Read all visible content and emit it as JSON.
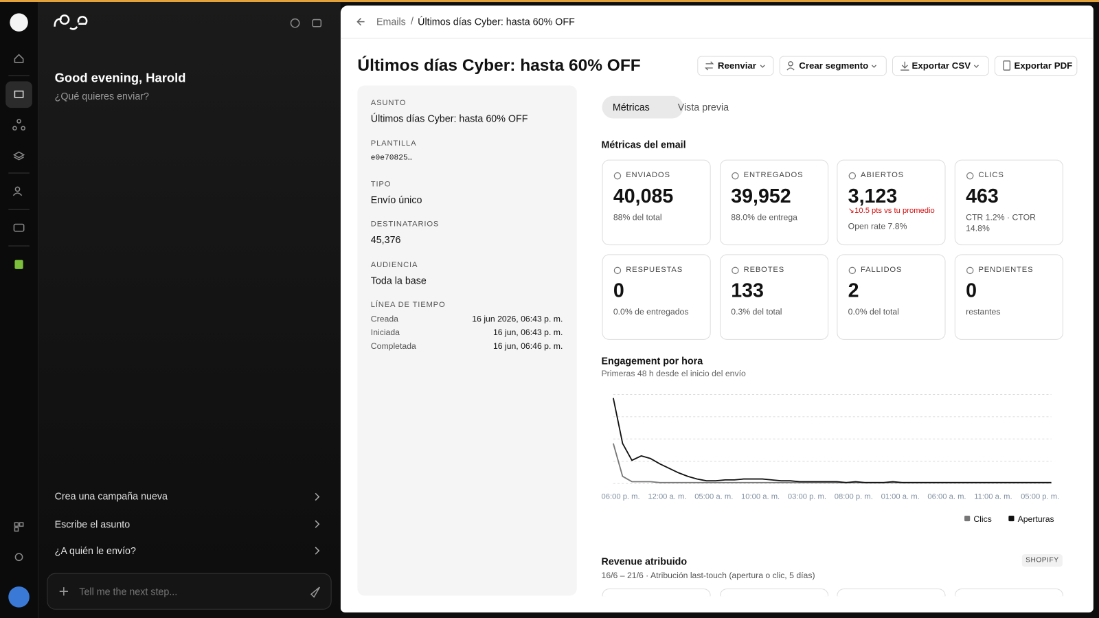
{
  "sidebar": {
    "greeting": "Good evening, Harold",
    "prompt": "¿Qué quieres enviar?",
    "suggestions": [
      "Crea una campaña nueva",
      "Escribe el asunto",
      "¿A quién le envío?"
    ],
    "input_placeholder": "Tell me the next step..."
  },
  "breadcrumb": [
    "Emails",
    "Últimos días Cyber: hasta 60% OFF"
  ],
  "title": "Últimos días Cyber: hasta 60% OFF",
  "actions": [
    "Reenviar",
    "Crear segmento",
    "Exportar CSV",
    "Exportar PDF"
  ],
  "details": [
    {
      "label": "ASUNTO",
      "value": "Últimos días Cyber: hasta 60% OFF"
    },
    {
      "label": "PLANTILLA",
      "value": "e0e70825…"
    },
    {
      "label": "TIPO",
      "value": "Envío único"
    },
    {
      "label": "DESTINATARIOS",
      "value": "45,376"
    },
    {
      "label": "AUDIENCIA",
      "value": "Toda la base"
    }
  ],
  "timeline": {
    "label": "LÍNEA DE TIEMPO",
    "rows": [
      {
        "label": "Creada",
        "value": "16 jun 2026, 06:43 p. m."
      },
      {
        "label": "Iniciada",
        "value": "16 jun, 06:43 p. m."
      },
      {
        "label": "Completada",
        "value": "16 jun, 06:46 p. m."
      }
    ]
  },
  "tabs": [
    "Métricas",
    "Vista previa"
  ],
  "metrics": {
    "title": "Métricas del email",
    "cards": [
      {
        "label": "ENVIADOS",
        "value": "40,085",
        "note": "88% del total"
      },
      {
        "label": "ENTREGADOS",
        "value": "39,952",
        "note": "88.0% de entrega"
      },
      {
        "label": "ABIERTOS",
        "value": "3,123",
        "alert": "↘10.5 pts vs tu promedio",
        "note": "Open rate 7.8%"
      },
      {
        "label": "CLICS",
        "value": "463",
        "note": "CTR 1.2% · CTOR 14.8%"
      },
      {
        "label": "RESPUESTAS",
        "value": "0",
        "note": "0.0% de entregados"
      },
      {
        "label": "REBOTES",
        "value": "133",
        "note": "0.3% del total"
      },
      {
        "label": "FALLIDOS",
        "value": "2",
        "note": "0.0% del total"
      },
      {
        "label": "PENDIENTES",
        "value": "0",
        "note": "restantes"
      }
    ]
  },
  "chart_data": {
    "type": "line",
    "title": "Engagement por hora",
    "subtitle": "Primeras 48 h desde el inicio del envío",
    "categories": [
      "06:00 p. m.",
      null,
      null,
      null,
      null,
      "12:00 a. m.",
      null,
      null,
      null,
      null,
      "05:00 a. m.",
      null,
      null,
      null,
      null,
      "10:00 a. m.",
      null,
      null,
      null,
      null,
      "03:00 p. m.",
      null,
      null,
      null,
      null,
      "08:00 p. m.",
      null,
      null,
      null,
      null,
      "01:00 a. m.",
      null,
      null,
      null,
      null,
      "06:00 a. m.",
      null,
      null,
      null,
      null,
      "11:00 a. m.",
      null,
      null,
      null,
      null,
      "05:00 p. m.",
      null,
      null
    ],
    "ylim": [
      0,
      100
    ],
    "yticks": [
      0,
      25,
      50,
      75,
      100
    ],
    "grid": true,
    "series": [
      {
        "name": "Clics",
        "color": "#777777",
        "values": [
          45,
          8,
          2,
          2,
          2,
          1,
          1,
          1,
          1,
          1,
          1,
          1,
          1,
          1,
          1,
          1,
          1,
          1,
          1,
          1,
          1,
          1,
          1,
          1,
          1,
          1,
          1,
          1,
          1,
          1,
          1,
          1,
          1,
          1,
          1,
          1,
          1,
          1,
          1,
          1,
          1,
          1,
          1,
          1,
          1,
          1,
          1,
          1
        ]
      },
      {
        "name": "Aperturas",
        "color": "#111111",
        "values": [
          96,
          45,
          26,
          31,
          28,
          22,
          17,
          12,
          8,
          5,
          3,
          3,
          4,
          4,
          5,
          5,
          5,
          4,
          3,
          3,
          2,
          2,
          2,
          2,
          2,
          1,
          2,
          1,
          1,
          1,
          2,
          1,
          1,
          1,
          1,
          1,
          1,
          1,
          1,
          1,
          1,
          1,
          1,
          1,
          1,
          1,
          1,
          1
        ]
      }
    ]
  },
  "revenue": {
    "title": "Revenue atribuido",
    "badge": "SHOPIFY",
    "subtitle": "16/6 – 21/6 · Atribución last-touch (apertura o clic, 5 días)"
  }
}
